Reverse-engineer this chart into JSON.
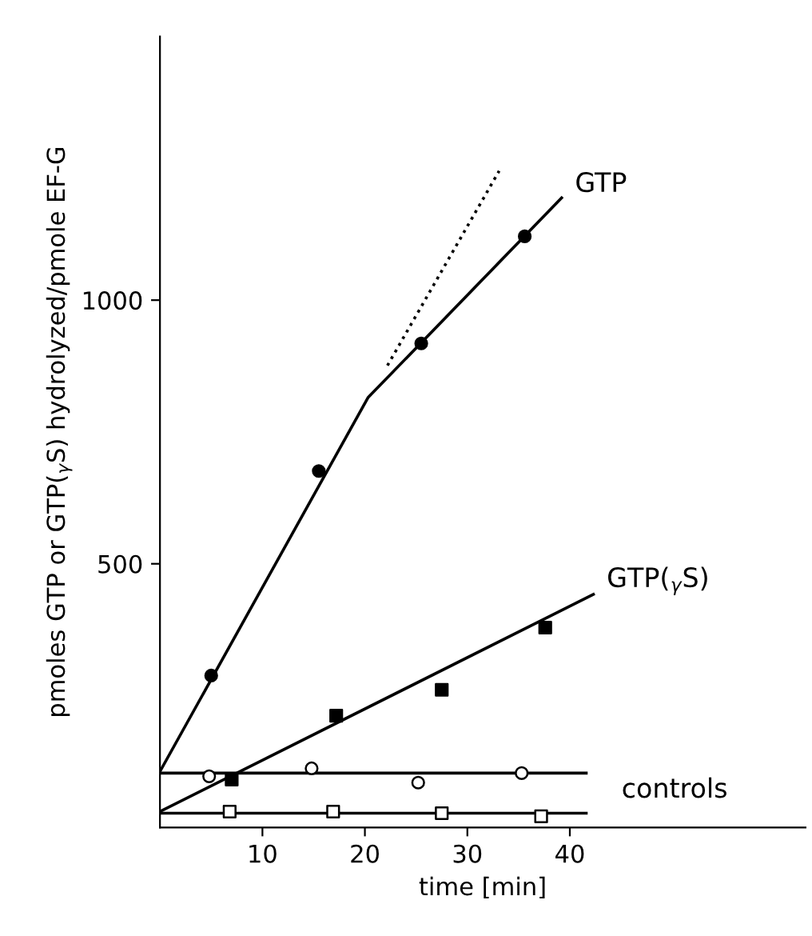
{
  "chart_data": {
    "type": "scatter",
    "xlabel": "time [min]",
    "ylabel": "pmoles GTP or GTP($_{γ}$S) hydrolyzed/pmole EF-G",
    "xlim": [
      0,
      63
    ],
    "ylim": [
      0,
      1500
    ],
    "xticks": [
      10,
      20,
      30,
      40
    ],
    "yticks": [
      500,
      1000
    ],
    "grid": false,
    "legend": false,
    "series": [
      {
        "marker": "circle",
        "color": "#000000",
        "x": [
          5.0,
          15.5,
          25.5,
          35.6
        ],
        "values": [
          288,
          676,
          918,
          1121
        ]
      },
      {
        "type": "line",
        "name": "GTP",
        "color": "#000000",
        "line_style": "solid",
        "x": [
          0,
          20.3,
          39.2
        ],
        "values": [
          106,
          815,
          1194
        ]
      },
      {
        "type": "line",
        "color": "#000000",
        "line_style": "dotted",
        "x": [
          22.2,
          33.1
        ],
        "values": [
          876,
          1245
        ]
      },
      {
        "marker": "square",
        "color": "#000000",
        "x": [
          7.0,
          17.2,
          27.5,
          37.6
        ],
        "values": [
          91,
          212,
          261,
          379
        ]
      },
      {
        "type": "line",
        "name": "GTP($_{γ}$S)",
        "color": "#000000",
        "line_style": "solid",
        "x": [
          0,
          42.3
        ],
        "values": [
          30,
          442
        ]
      },
      {
        "marker": "circle",
        "color": "#ffffff",
        "x": [
          4.8,
          14.8,
          25.2,
          35.3
        ],
        "values": [
          97,
          112,
          85,
          103
        ]
      },
      {
        "type": "line",
        "color": "#000000",
        "line_style": "solid",
        "x": [
          0,
          41.6
        ],
        "values": [
          103,
          103
        ]
      },
      {
        "marker": "square",
        "color": "#ffffff",
        "x": [
          6.8,
          16.9,
          27.5,
          37.2
        ],
        "values": [
          30,
          30,
          27,
          21
        ]
      },
      {
        "type": "line",
        "color": "#000000",
        "line_style": "solid",
        "x": [
          0,
          41.6
        ],
        "values": [
          27,
          27
        ]
      }
    ],
    "annotations": [
      "controls"
    ]
  }
}
